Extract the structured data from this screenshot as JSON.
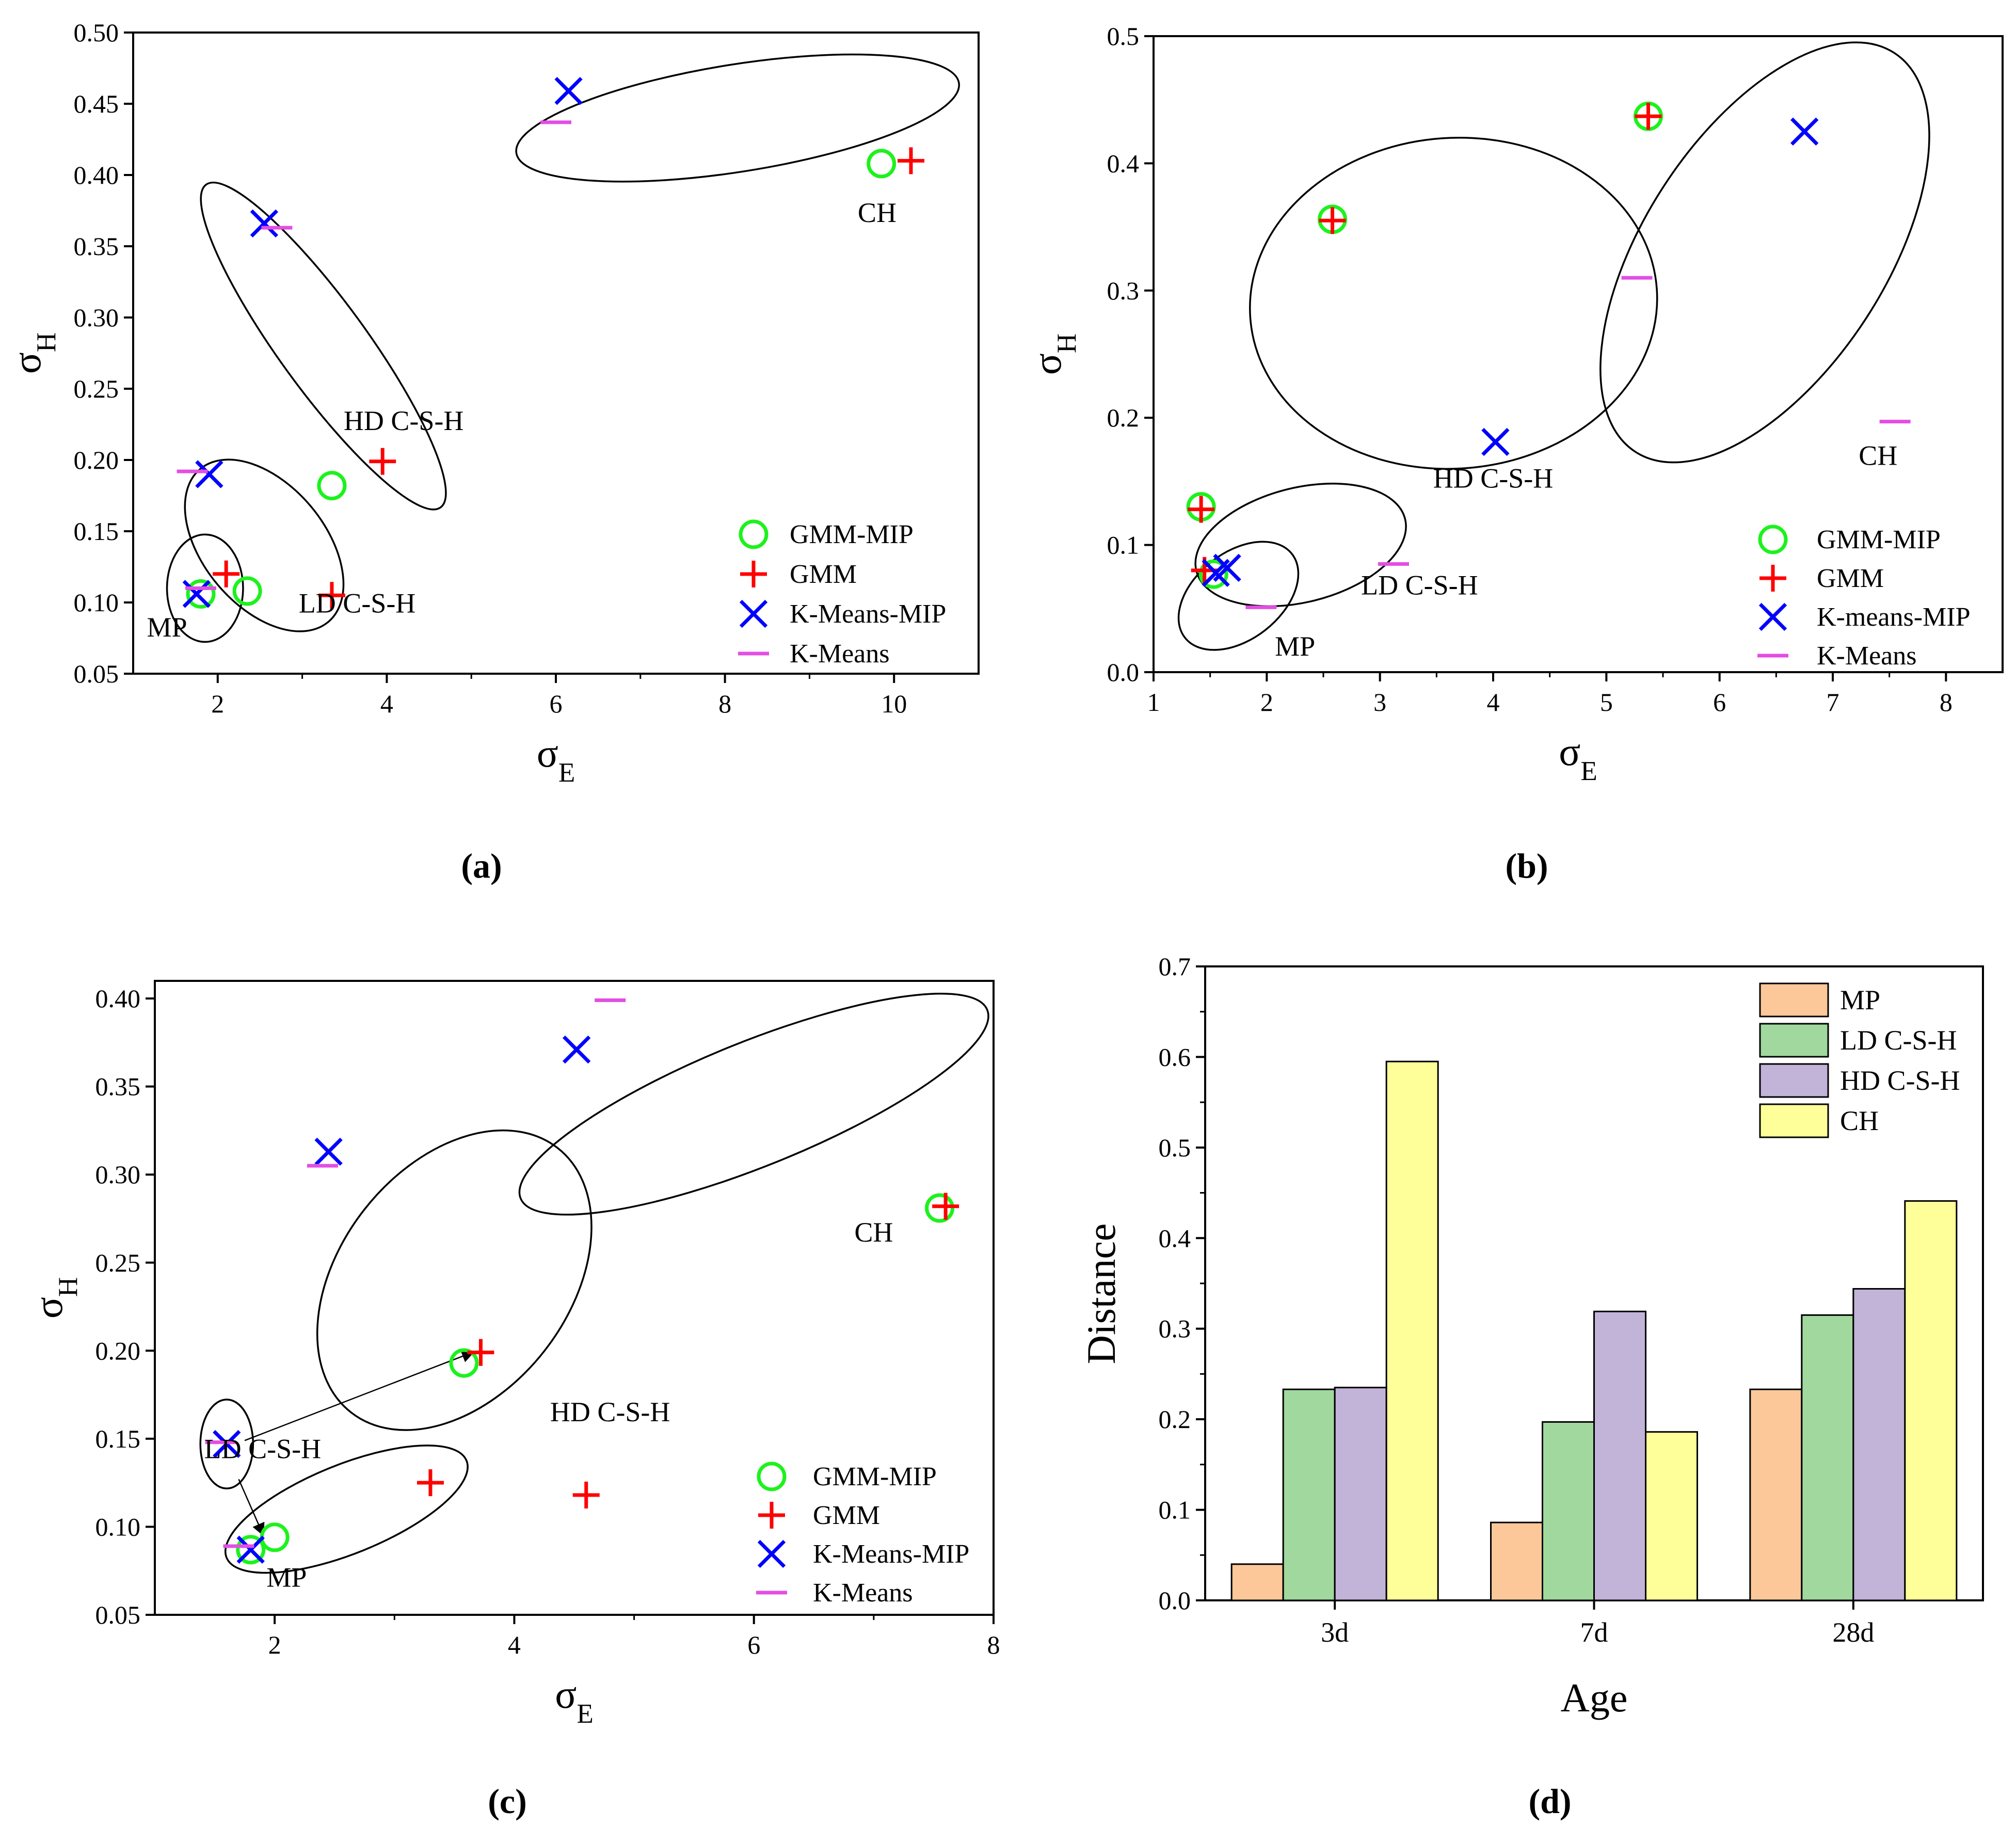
{
  "chart_data": [
    {
      "type": "scatter",
      "panel_label": "(a)",
      "xlabel": {
        "base": "σ",
        "sub": "E"
      },
      "ylabel": {
        "base": "σ",
        "sub": "H"
      },
      "xlim": [
        1,
        11
      ],
      "ylim": [
        0.05,
        0.5
      ],
      "xticks": [
        2,
        4,
        6,
        8,
        10
      ],
      "yticks": [
        0.05,
        0.1,
        0.15,
        0.2,
        0.25,
        0.3,
        0.35,
        0.4,
        0.45,
        0.5
      ],
      "ytick_decimals": 2,
      "grid": false,
      "legend_position": "bottom-right",
      "legend_labels": [
        "GMM-MIP",
        "GMM",
        "K-Means-MIP",
        "K-Means"
      ],
      "series": [
        {
          "name": "GMM-MIP",
          "marker": "circle",
          "color": "#1cf21c",
          "points": [
            [
              1.8,
              0.106
            ],
            [
              2.35,
              0.108
            ],
            [
              3.35,
              0.182
            ],
            [
              9.85,
              0.408
            ]
          ]
        },
        {
          "name": "GMM",
          "marker": "plus",
          "color": "#ff0000",
          "points": [
            [
              2.1,
              0.12
            ],
            [
              3.35,
              0.105
            ],
            [
              3.95,
              0.199
            ],
            [
              10.2,
              0.41
            ]
          ]
        },
        {
          "name": "K-Means-MIP",
          "marker": "x",
          "color": "#0000ff",
          "points": [
            [
              1.75,
              0.106
            ],
            [
              1.9,
              0.19
            ],
            [
              2.55,
              0.366
            ],
            [
              6.15,
              0.459
            ]
          ]
        },
        {
          "name": "K-Means",
          "marker": "dash",
          "color": "#e34ee3",
          "points": [
            [
              1.8,
              0.11
            ],
            [
              1.7,
              0.192
            ],
            [
              2.7,
              0.363
            ],
            [
              6.0,
              0.437
            ]
          ]
        }
      ],
      "annotations": [
        {
          "text": "MP",
          "x": 1.4,
          "y": 0.076
        },
        {
          "text": "LD C-S-H",
          "x": 3.65,
          "y": 0.093
        },
        {
          "text": "HD C-S-H",
          "x": 4.2,
          "y": 0.221
        },
        {
          "text": "CH",
          "x": 9.8,
          "y": 0.367
        }
      ],
      "ellipses": [
        {
          "cx": 1.85,
          "cy": 0.11,
          "rx": 0.45,
          "ry": 0.025,
          "angle": 0
        },
        {
          "cx": 2.55,
          "cy": 0.14,
          "rx": 0.72,
          "ry": 0.07,
          "angle": -40
        },
        {
          "cx": 3.25,
          "cy": 0.28,
          "rx": 0.52,
          "ry": 0.14,
          "angle": -36
        },
        {
          "cx": 8.15,
          "cy": 0.44,
          "rx": 2.65,
          "ry": 0.025,
          "angle": -9
        }
      ]
    },
    {
      "type": "scatter",
      "panel_label": "(b)",
      "xlabel": {
        "base": "σ",
        "sub": "E"
      },
      "ylabel": {
        "base": "σ",
        "sub": "H"
      },
      "xlim": [
        1,
        8.5
      ],
      "ylim": [
        0,
        0.5
      ],
      "xticks": [
        1,
        2,
        3,
        4,
        5,
        6,
        7,
        8
      ],
      "yticks": [
        0.0,
        0.1,
        0.2,
        0.3,
        0.4,
        0.5
      ],
      "ytick_decimals": 1,
      "grid": false,
      "legend_position": "bottom-right",
      "legend_labels": [
        "GMM-MIP",
        "GMM",
        "K-means-MIP",
        "K-Means"
      ],
      "series": [
        {
          "name": "GMM-MIP",
          "marker": "circle",
          "color": "#1cf21c",
          "points": [
            [
              1.53,
              0.077
            ],
            [
              1.42,
              0.13
            ],
            [
              2.58,
              0.356
            ],
            [
              5.37,
              0.437
            ]
          ]
        },
        {
          "name": "GMM",
          "marker": "plus",
          "color": "#ff0000",
          "points": [
            [
              1.45,
              0.08
            ],
            [
              1.42,
              0.128
            ],
            [
              2.58,
              0.355
            ],
            [
              5.37,
              0.437
            ]
          ]
        },
        {
          "name": "K-means-MIP",
          "marker": "x",
          "color": "#0000ff",
          "points": [
            [
              1.55,
              0.078
            ],
            [
              1.65,
              0.082
            ],
            [
              4.02,
              0.181
            ],
            [
              6.75,
              0.425
            ]
          ]
        },
        {
          "name": "K-Means",
          "marker": "dash",
          "color": "#e34ee3",
          "points": [
            [
              1.95,
              0.051
            ],
            [
              3.12,
              0.085
            ],
            [
              5.27,
              0.31
            ],
            [
              7.55,
              0.197
            ]
          ]
        }
      ],
      "annotations": [
        {
          "text": "MP",
          "x": 2.25,
          "y": 0.013
        },
        {
          "text": "LD C-S-H",
          "x": 3.35,
          "y": 0.061
        },
        {
          "text": "HD C-S-H",
          "x": 4.0,
          "y": 0.145
        },
        {
          "text": "CH",
          "x": 7.4,
          "y": 0.163
        }
      ],
      "ellipses": [
        {
          "cx": 1.75,
          "cy": 0.06,
          "rx": 0.6,
          "ry": 0.02,
          "angle": -38
        },
        {
          "cx": 2.3,
          "cy": 0.1,
          "rx": 0.95,
          "ry": 0.045,
          "angle": -14
        },
        {
          "cx": 3.65,
          "cy": 0.29,
          "rx": 1.8,
          "ry": 0.13,
          "angle": -4
        },
        {
          "cx": 6.4,
          "cy": 0.33,
          "rx": 2.1,
          "ry": 0.095,
          "angle": -57
        }
      ]
    },
    {
      "type": "scatter",
      "panel_label": "(c)",
      "xlabel": {
        "base": "σ",
        "sub": "E"
      },
      "ylabel": {
        "base": "σ",
        "sub": "H"
      },
      "xlim": [
        1,
        8
      ],
      "ylim": [
        0.05,
        0.41
      ],
      "xticks": [
        2,
        4,
        6,
        8
      ],
      "yticks": [
        0.05,
        0.1,
        0.15,
        0.2,
        0.25,
        0.3,
        0.35,
        0.4
      ],
      "ytick_decimals": 2,
      "grid": false,
      "legend_position": "bottom-right",
      "legend_labels": [
        "GMM-MIP",
        "GMM",
        "K-Means-MIP",
        "K-Means"
      ],
      "series": [
        {
          "name": "GMM-MIP",
          "marker": "circle",
          "color": "#1cf21c",
          "points": [
            [
              2.0,
              0.094
            ],
            [
              1.8,
              0.087
            ],
            [
              3.58,
              0.193
            ],
            [
              7.55,
              0.281
            ]
          ]
        },
        {
          "name": "GMM",
          "marker": "plus",
          "color": "#ff0000",
          "points": [
            [
              3.72,
              0.199
            ],
            [
              3.3,
              0.125
            ],
            [
              4.6,
              0.118
            ],
            [
              7.6,
              0.282
            ]
          ]
        },
        {
          "name": "K-Means-MIP",
          "marker": "x",
          "color": "#0000ff",
          "points": [
            [
              1.8,
              0.087
            ],
            [
              1.6,
              0.147
            ],
            [
              2.45,
              0.313
            ],
            [
              4.52,
              0.371
            ]
          ]
        },
        {
          "name": "K-Means",
          "marker": "dash",
          "color": "#e34ee3",
          "points": [
            [
              1.7,
              0.089
            ],
            [
              1.55,
              0.148
            ],
            [
              2.4,
              0.305
            ],
            [
              4.8,
              0.399
            ]
          ]
        }
      ],
      "annotations": [
        {
          "text": "MP",
          "x": 2.1,
          "y": 0.066
        },
        {
          "text": "LD C-S-H",
          "x": 1.9,
          "y": 0.139
        },
        {
          "text": "HD C-S-H",
          "x": 4.8,
          "y": 0.16
        },
        {
          "text": "CH",
          "x": 7.0,
          "y": 0.262
        }
      ],
      "ellipses": [
        {
          "cx": 1.6,
          "cy": 0.147,
          "rx": 0.22,
          "ry": 0.015,
          "angle": 0
        },
        {
          "cx": 2.6,
          "cy": 0.11,
          "rx": 1.08,
          "ry": 0.015,
          "angle": -22
        },
        {
          "cx": 3.5,
          "cy": 0.24,
          "rx": 1.4,
          "ry": 0.065,
          "angle": -52
        },
        {
          "cx": 6.0,
          "cy": 0.34,
          "rx": 2.1,
          "ry": 0.025,
          "angle": -22
        }
      ],
      "arrows": [
        {
          "from": [
            1.75,
            0.149
          ],
          "to": [
            3.65,
            0.199
          ]
        },
        {
          "from": [
            1.7,
            0.127
          ],
          "to": [
            1.9,
            0.096
          ]
        }
      ]
    },
    {
      "type": "bar",
      "panel_label": "(d)",
      "xlabel": "Age",
      "ylabel": "Distance",
      "ylim": [
        0,
        0.7
      ],
      "yticks": [
        0.0,
        0.1,
        0.2,
        0.3,
        0.4,
        0.5,
        0.6,
        0.7
      ],
      "grid": false,
      "legend_position": "top-right",
      "categories": [
        "3d",
        "7d",
        "28d"
      ],
      "series": [
        {
          "name": "MP",
          "color": "#fcc899",
          "values": [
            0.04,
            0.086,
            0.233
          ]
        },
        {
          "name": "LD C-S-H",
          "color": "#a0d89e",
          "values": [
            0.233,
            0.197,
            0.315
          ]
        },
        {
          "name": "HD C-S-H",
          "color": "#c2b3d9",
          "values": [
            0.235,
            0.319,
            0.344
          ]
        },
        {
          "name": "CH",
          "color": "#ffff99",
          "values": [
            0.595,
            0.186,
            0.441
          ]
        }
      ]
    }
  ]
}
